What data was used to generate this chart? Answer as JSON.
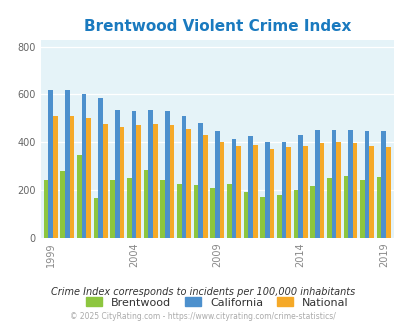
{
  "title": "Brentwood Violent Crime Index",
  "years": [
    1999,
    2000,
    2001,
    2002,
    2003,
    2004,
    2005,
    2006,
    2007,
    2008,
    2009,
    2010,
    2011,
    2012,
    2013,
    2014,
    2015,
    2016,
    2017,
    2018,
    2019
  ],
  "brentwood": [
    240,
    280,
    345,
    165,
    240,
    250,
    285,
    240,
    225,
    220,
    210,
    225,
    190,
    170,
    180,
    200,
    215,
    250,
    260,
    240,
    255
  ],
  "california": [
    620,
    620,
    600,
    585,
    535,
    530,
    535,
    530,
    510,
    480,
    445,
    415,
    425,
    400,
    400,
    430,
    450,
    450,
    450,
    445,
    445
  ],
  "national": [
    510,
    510,
    500,
    475,
    465,
    470,
    475,
    470,
    455,
    430,
    400,
    385,
    390,
    370,
    380,
    385,
    395,
    400,
    395,
    385,
    380
  ],
  "colors": {
    "brentwood": "#8dc63f",
    "california": "#4d90cd",
    "national": "#f5a928"
  },
  "ylim": [
    0,
    830
  ],
  "yticks": [
    0,
    200,
    400,
    600,
    800
  ],
  "xtick_positions": [
    0,
    5,
    10,
    15,
    20
  ],
  "xtick_labels": [
    "1999",
    "2004",
    "2009",
    "2014",
    "2019"
  ],
  "plot_bg": "#e5f3f8",
  "title_color": "#1a7abf",
  "subtitle": "Crime Index corresponds to incidents per 100,000 inhabitants",
  "footer": "© 2025 CityRating.com - https://www.cityrating.com/crime-statistics/",
  "legend_labels": [
    "Brentwood",
    "California",
    "National"
  ]
}
